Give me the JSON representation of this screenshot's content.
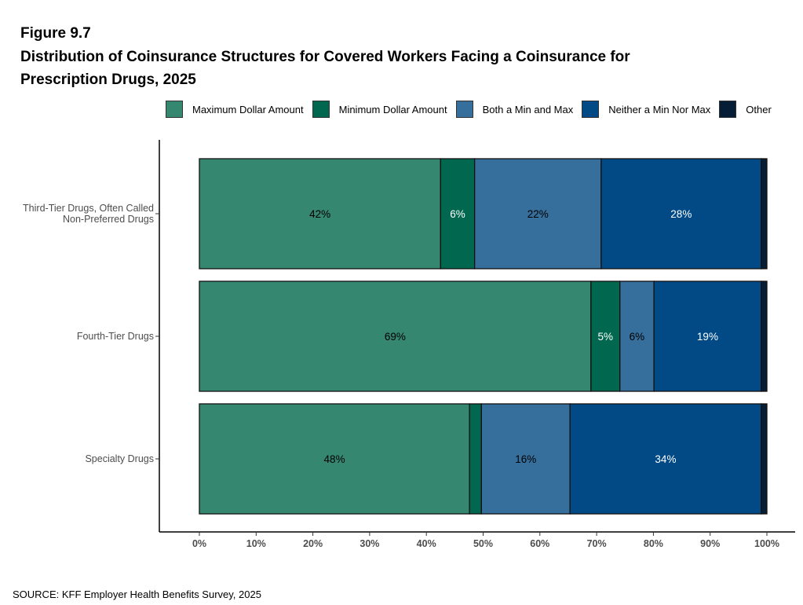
{
  "header": {
    "figure": "Figure 9.7",
    "title_line1": "Distribution of Coinsurance Structures for Covered Workers Facing a Coinsurance for",
    "title_line2": "Prescription Drugs, 2025"
  },
  "source": "SOURCE: KFF Employer Health Benefits Survey, 2025",
  "chart_data": {
    "type": "bar",
    "orientation": "horizontal",
    "stacked": true,
    "title": "Distribution of Coinsurance Structures for Covered Workers Facing a Coinsurance for Prescription Drugs, 2025",
    "categories": [
      [
        "Third-Tier Drugs, Often Called",
        "Non-Preferred Drugs"
      ],
      [
        "Fourth-Tier Drugs"
      ],
      [
        "Specialty Drugs"
      ]
    ],
    "xlim": [
      0,
      100
    ],
    "xticks": [
      "0%",
      "10%",
      "20%",
      "30%",
      "40%",
      "50%",
      "60%",
      "70%",
      "80%",
      "90%",
      "100%"
    ],
    "grid": false,
    "legend_position": "top",
    "series": [
      {
        "name": "Maximum Dollar Amount",
        "color": "#35876F",
        "label_color": "#000000",
        "values": [
          42.5,
          69,
          47.6
        ],
        "labels": [
          "42%",
          "69%",
          "48%"
        ]
      },
      {
        "name": "Minimum Dollar Amount",
        "color": "#02674F",
        "label_color": "#FFFFFF",
        "values": [
          6,
          5.1,
          2.1
        ],
        "labels": [
          "6%",
          "5%",
          ""
        ]
      },
      {
        "name": "Both a Min and Max",
        "color": "#366E9C",
        "label_color": "#000000",
        "values": [
          22.3,
          6,
          15.6
        ],
        "labels": [
          "22%",
          "6%",
          "16%"
        ]
      },
      {
        "name": "Neither a Min Nor Max",
        "color": "#024A86",
        "label_color": "#FFFFFF",
        "values": [
          28.2,
          18.9,
          33.7
        ],
        "labels": [
          "28%",
          "19%",
          "34%"
        ]
      },
      {
        "name": "Other",
        "color": "#061E35",
        "label_color": "#FFFFFF",
        "values": [
          1,
          1,
          1
        ],
        "labels": [
          "",
          "",
          ""
        ]
      }
    ]
  }
}
